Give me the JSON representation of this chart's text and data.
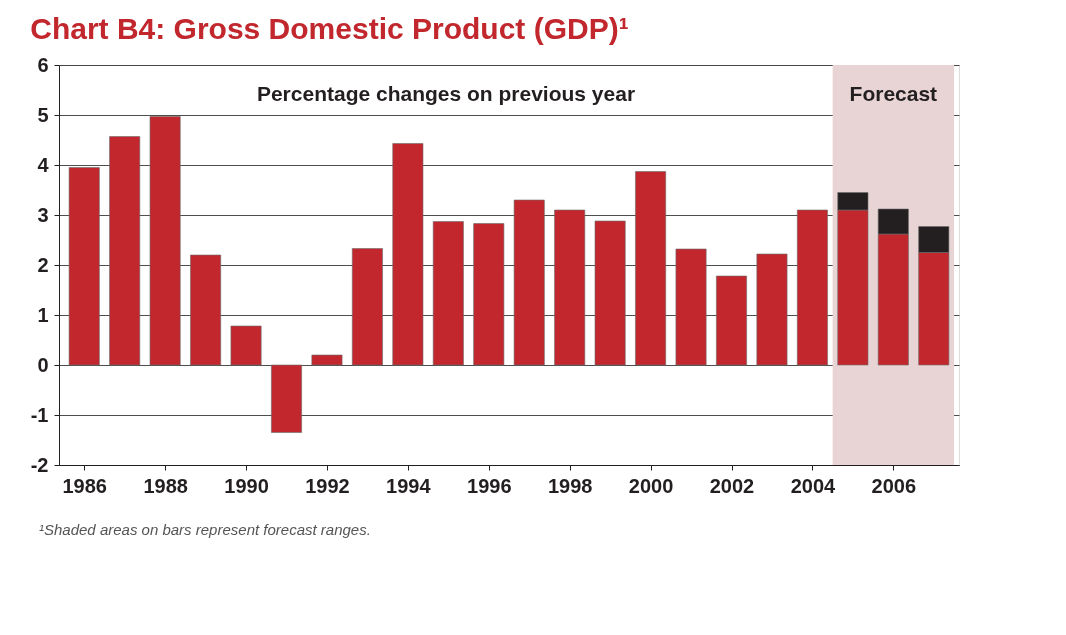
{
  "chart_data": {
    "type": "bar",
    "title": "Chart B4: Gross Domestic Product (GDP)¹",
    "subtitle": "Percentage changes on previous year",
    "x": [
      1986,
      1987,
      1988,
      1989,
      1990,
      1991,
      1992,
      1993,
      1994,
      1995,
      1996,
      1997,
      1998,
      1999,
      2000,
      2001,
      2002,
      2003,
      2004,
      2005,
      2006,
      2007
    ],
    "stacked": true,
    "series": [
      {
        "color": "#c1272d",
        "values": [
          3.95,
          4.57,
          4.97,
          2.2,
          0.78,
          -1.35,
          0.2,
          2.33,
          4.43,
          2.87,
          2.83,
          3.3,
          3.1,
          2.88,
          3.87,
          2.32,
          1.78,
          2.22,
          3.1,
          3.1,
          2.62,
          2.25
        ]
      },
      {
        "color": "#231f20",
        "values": [
          null,
          null,
          null,
          null,
          null,
          null,
          null,
          null,
          null,
          null,
          null,
          null,
          null,
          null,
          null,
          null,
          null,
          null,
          null,
          0.35,
          0.5,
          0.52
        ]
      }
    ],
    "xlim": [
      1985.5,
      2007.5
    ],
    "xticks": [
      1986,
      1988,
      1990,
      1992,
      1994,
      1996,
      1998,
      2000,
      2002,
      2004,
      2006
    ],
    "ylim": [
      -2,
      6
    ],
    "yticks": [
      -2,
      -1,
      0,
      1,
      2,
      3,
      4,
      5,
      6
    ],
    "bands": [
      {
        "axis": "x",
        "from": 2004.5,
        "to": 2007.5,
        "label": "Forecast",
        "color": "#e8d4d4"
      }
    ],
    "grid": "y",
    "legend": false,
    "annotations": [
      "¹Shaded areas on bars represent forecast ranges."
    ]
  }
}
